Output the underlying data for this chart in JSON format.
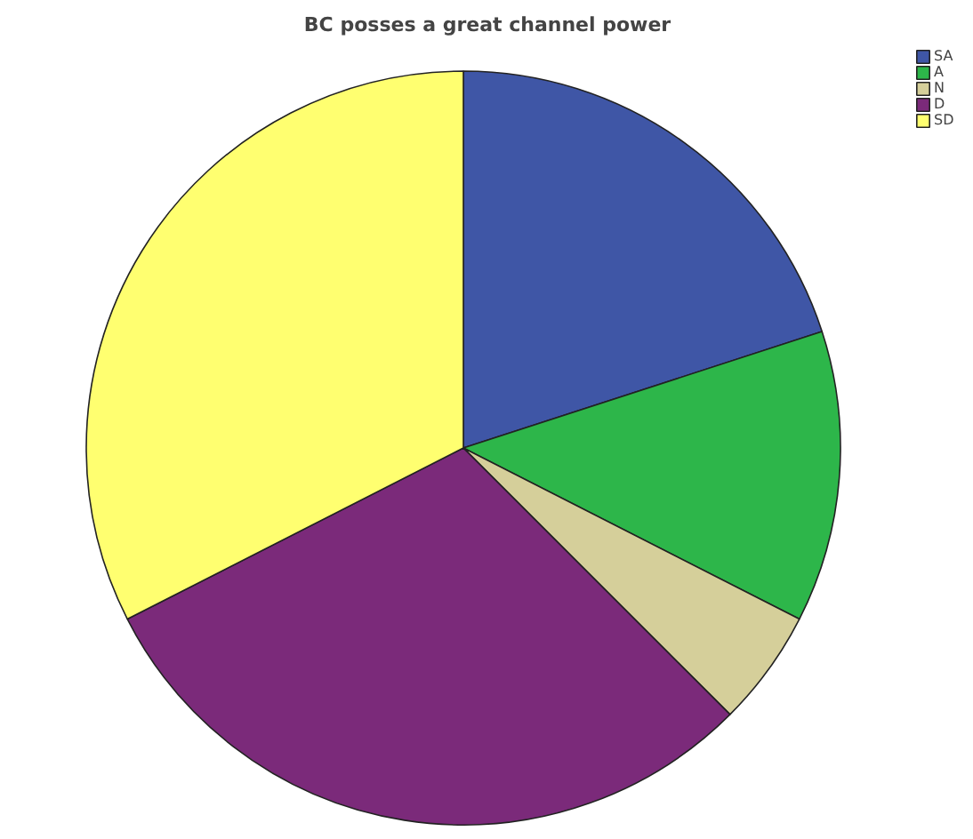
{
  "chart_data": {
    "type": "pie",
    "title": "BC posses a great channel power",
    "categories": [
      "SA",
      "A",
      "N",
      "D",
      "SD"
    ],
    "values": [
      20,
      12.5,
      5,
      30,
      32.5
    ],
    "colors": [
      "#3f56a6",
      "#2db64a",
      "#d5cf9a",
      "#7b2a7a",
      "#ffff70"
    ],
    "legend": "top right"
  }
}
